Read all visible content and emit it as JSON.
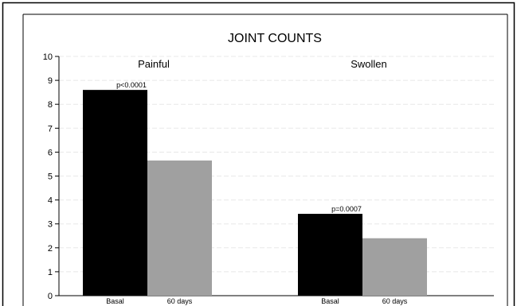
{
  "chart_data": {
    "type": "bar",
    "title": "JOINT COUNTS",
    "xlabel": "",
    "ylabel": "",
    "ylim": [
      0,
      10
    ],
    "yticks": [
      "0",
      "1",
      "2",
      "3",
      "4",
      "5",
      "6",
      "7",
      "8",
      "9",
      "10"
    ],
    "grid": true,
    "groups": [
      {
        "label": "Painful",
        "annotation": "p<0.0001",
        "bars": [
          {
            "label": "Basal",
            "value": 8.6,
            "color": "#000000"
          },
          {
            "label": "60 days",
            "value": 5.65,
            "color": "#a0a0a0"
          }
        ]
      },
      {
        "label": "Swollen",
        "annotation": "p=0.0007",
        "bars": [
          {
            "label": "Basal",
            "value": 3.42,
            "color": "#000000"
          },
          {
            "label": "60 days",
            "value": 2.4,
            "color": "#a0a0a0"
          }
        ]
      }
    ]
  }
}
